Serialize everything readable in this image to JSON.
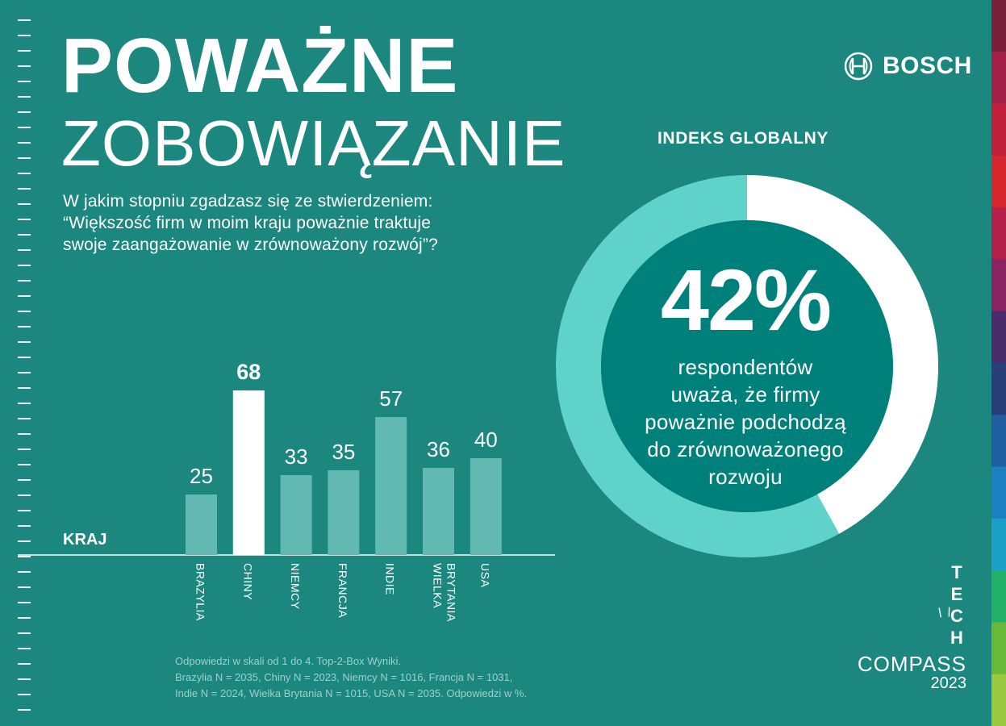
{
  "title": {
    "line1": "POWAŻNE",
    "line2": "ZOBOWIĄZANIE"
  },
  "question": {
    "lines": [
      "W jakim stopniu zgadzasz się ze stwierdzeniem:",
      "“Większość firm w moim kraju poważnie traktuje",
      "swoje zaangażowanie w zrównoważony rozwój”?"
    ]
  },
  "brand": {
    "name": "BOSCH",
    "icon": "bosch-armature-logo"
  },
  "index": {
    "title": "INDEKS GLOBALNY",
    "percent": "42%",
    "value": 42,
    "description": [
      "respondentów",
      "uważa, że firmy",
      "poważnie podchodzą",
      "do zrównoważonego",
      "rozwoju"
    ]
  },
  "axis_label": "KRAJ",
  "chart_data": {
    "type": "bar",
    "categories": [
      "BRAZYLIA",
      "CHINY",
      "NIEMCY",
      "FRANCJA",
      "INDIE",
      "WIELKA BRYTANIA",
      "USA"
    ],
    "values": [
      25,
      68,
      33,
      35,
      57,
      36,
      40
    ],
    "highlight": "CHINY"
  },
  "note": {
    "lines": [
      "Odpowiedzi w skali od 1 do 4. Top-2-Box Wyniki.",
      "Brazylia N = 2035, Chiny N = 2023, Niemcy N = 1016, Francja N = 1031,",
      "Indie N = 2024, Wielka Brytania N = 1015, USA N = 2035. Odpowiedzi w %."
    ]
  },
  "logo": {
    "letters": [
      "T",
      "E",
      "C",
      "H"
    ],
    "compass": "COMPASS",
    "year": "2023"
  },
  "colors": {
    "background": "#1b877e",
    "donut_ring": "#5fd3c9",
    "donut_filled": "#ffffff",
    "donut_center": "#00807a",
    "bar": "#62b9b2",
    "bar_highlight": "#ffffff"
  }
}
